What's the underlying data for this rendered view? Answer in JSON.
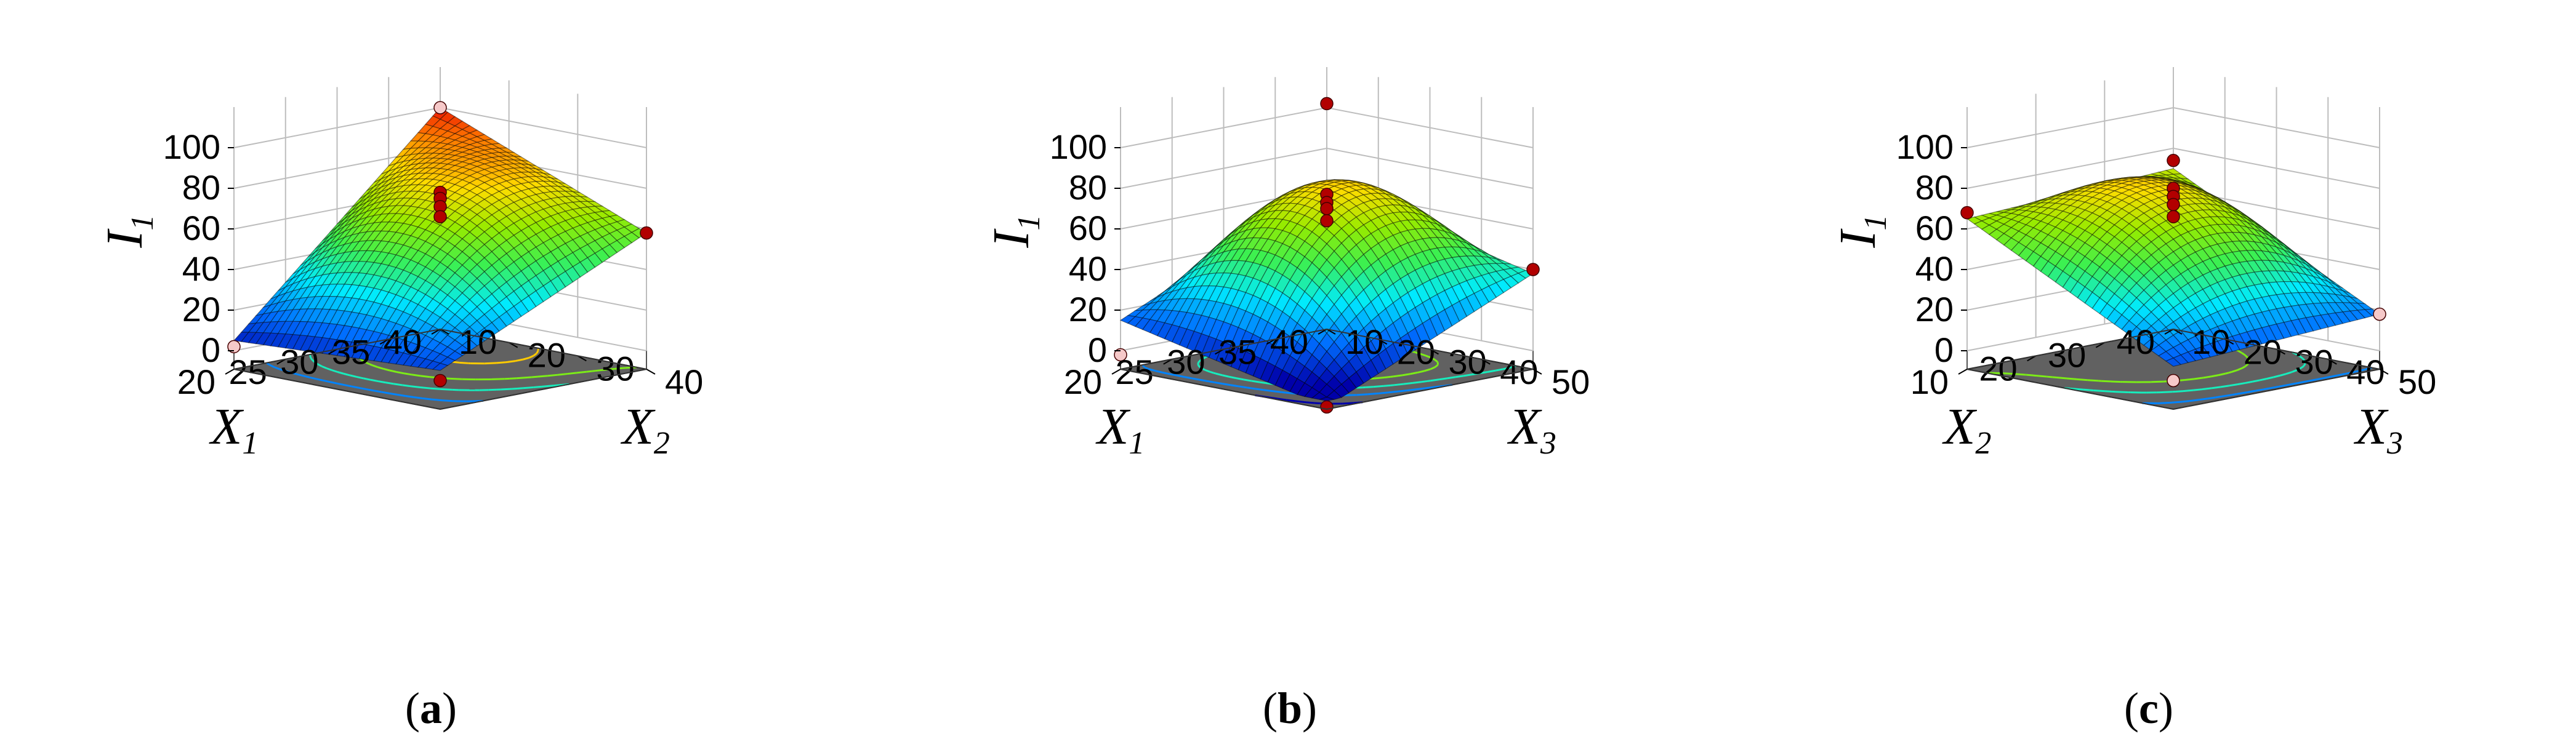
{
  "chart_data": [
    {
      "type": "surface3d",
      "caption_letter": "a",
      "zlabel": "I",
      "zlabel_sub": "1",
      "xlabel": "X",
      "xlabel_sub": "1",
      "ylabel": "X",
      "ylabel_sub": "2",
      "zlim": [
        0,
        100
      ],
      "ztick_labels": [
        "0",
        "20",
        "40",
        "60",
        "80",
        "100"
      ],
      "x_range": [
        20,
        40
      ],
      "x_tick_labels": [
        "20",
        "25",
        "30",
        "35",
        "40"
      ],
      "y_range": [
        10,
        40
      ],
      "y_tick_labels": [
        "10",
        "20",
        "30",
        "40"
      ],
      "corners": {
        "xmin_ymin": 5,
        "xmax_ymin": 100,
        "xmin_ymax": 10,
        "xmax_ymax": 58
      },
      "center_value": 72,
      "curvature": {
        "x": -8,
        "y": -4,
        "xy": 6
      },
      "design_points": [
        {
          "x": 40,
          "y": 10,
          "z": 100,
          "color": "light"
        },
        {
          "x": 40,
          "y": 40,
          "z": 58,
          "color": "dark"
        },
        {
          "x": 20,
          "y": 10,
          "z": 2,
          "color": "light"
        },
        {
          "x": 20,
          "y": 40,
          "z": 5,
          "color": "dark"
        },
        {
          "x": 30,
          "y": 25,
          "z": 78,
          "color": "dark"
        },
        {
          "x": 30,
          "y": 25,
          "z": 75,
          "color": "dark"
        },
        {
          "x": 30,
          "y": 25,
          "z": 71,
          "color": "dark"
        },
        {
          "x": 30,
          "y": 25,
          "z": 66,
          "color": "dark"
        }
      ],
      "contour_levels": [
        20,
        40,
        60,
        80
      ]
    },
    {
      "type": "surface3d",
      "caption_letter": "b",
      "zlabel": "I",
      "zlabel_sub": "1",
      "xlabel": "X",
      "xlabel_sub": "1",
      "ylabel": "X",
      "ylabel_sub": "3",
      "zlim": [
        0,
        100
      ],
      "ztick_labels": [
        "0",
        "20",
        "40",
        "60",
        "80",
        "100"
      ],
      "x_range": [
        20,
        40
      ],
      "x_tick_labels": [
        "20",
        "25",
        "30",
        "35",
        "40"
      ],
      "y_range": [
        10,
        50
      ],
      "y_tick_labels": [
        "10",
        "20",
        "30",
        "40",
        "50"
      ],
      "corners": {
        "xmin_ymin": 15,
        "xmax_ymin": 62,
        "xmin_ymax": -8,
        "xmax_ymax": 38
      },
      "center_value": 76,
      "curvature": {
        "x": -22,
        "y": -30,
        "xy": 4
      },
      "design_points": [
        {
          "x": 40,
          "y": 10,
          "z": 102,
          "color": "dark"
        },
        {
          "x": 40,
          "y": 50,
          "z": 40,
          "color": "dark"
        },
        {
          "x": 20,
          "y": 10,
          "z": -2,
          "color": "light"
        },
        {
          "x": 20,
          "y": 50,
          "z": -8,
          "color": "dark"
        },
        {
          "x": 30,
          "y": 30,
          "z": 77,
          "color": "dark"
        },
        {
          "x": 30,
          "y": 30,
          "z": 73,
          "color": "dark"
        },
        {
          "x": 30,
          "y": 30,
          "z": 70,
          "color": "dark"
        },
        {
          "x": 30,
          "y": 30,
          "z": 64,
          "color": "dark"
        }
      ],
      "contour_levels": [
        0,
        20,
        40,
        60,
        80
      ]
    },
    {
      "type": "surface3d",
      "caption_letter": "c",
      "zlabel": "I",
      "zlabel_sub": "1",
      "xlabel": "X",
      "xlabel_sub": "2",
      "ylabel": "X",
      "ylabel_sub": "3",
      "zlim": [
        0,
        100
      ],
      "ztick_labels": [
        "0",
        "20",
        "40",
        "60",
        "80",
        "100"
      ],
      "x_range": [
        10,
        40
      ],
      "x_tick_labels": [
        "10",
        "20",
        "30",
        "40"
      ],
      "y_range": [
        10,
        50
      ],
      "y_tick_labels": [
        "10",
        "20",
        "30",
        "40",
        "50"
      ],
      "corners": {
        "xmin_ymin": 65,
        "xmax_ymin": 70,
        "xmin_ymax": 12,
        "xmax_ymax": 18
      },
      "center_value": 74,
      "curvature": {
        "x": -6,
        "y": -22,
        "xy": 2
      },
      "design_points": [
        {
          "x": 40,
          "y": 10,
          "z": 74,
          "color": "dark"
        },
        {
          "x": 10,
          "y": 10,
          "z": 68,
          "color": "dark"
        },
        {
          "x": 40,
          "y": 50,
          "z": 18,
          "color": "light"
        },
        {
          "x": 10,
          "y": 50,
          "z": 5,
          "color": "light"
        },
        {
          "x": 25,
          "y": 30,
          "z": 80,
          "color": "dark"
        },
        {
          "x": 25,
          "y": 30,
          "z": 76,
          "color": "dark"
        },
        {
          "x": 25,
          "y": 30,
          "z": 72,
          "color": "dark"
        },
        {
          "x": 25,
          "y": 30,
          "z": 66,
          "color": "dark"
        }
      ],
      "contour_levels": [
        20,
        40,
        60
      ]
    }
  ]
}
